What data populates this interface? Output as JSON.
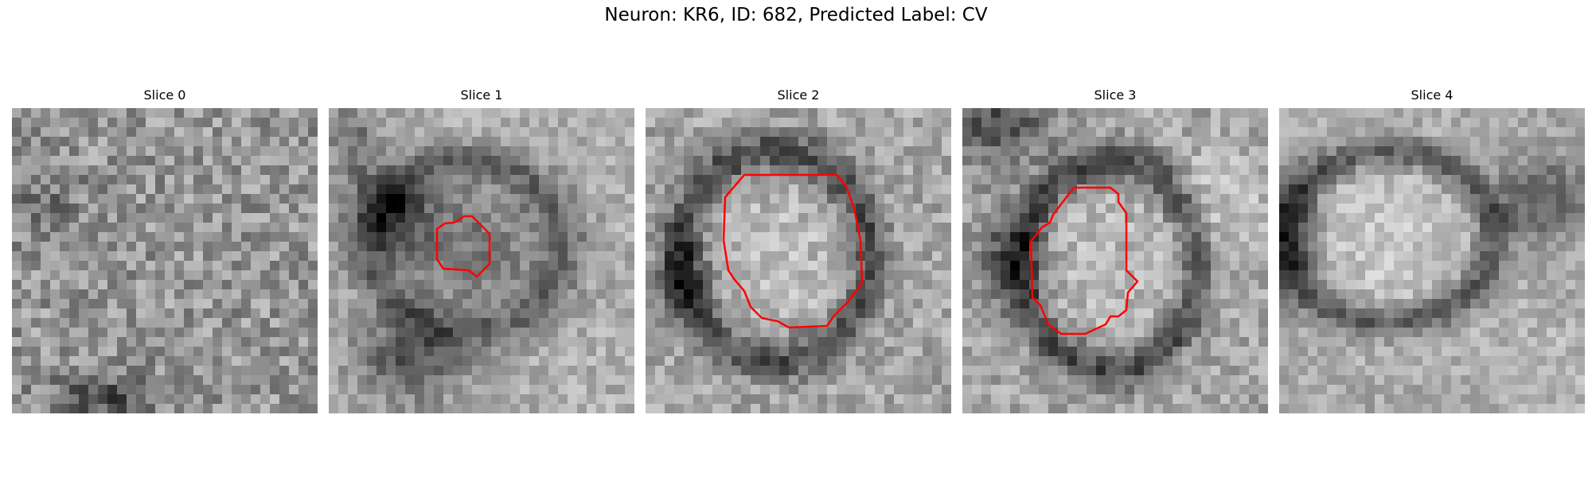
{
  "figure": {
    "title": "Neuron: KR6, ID: 682, Predicted Label: CV"
  },
  "panels": [
    {
      "title": "Slice 0",
      "has_contour": false
    },
    {
      "title": "Slice 1",
      "has_contour": true
    },
    {
      "title": "Slice 2",
      "has_contour": true
    },
    {
      "title": "Slice 3",
      "has_contour": true
    },
    {
      "title": "Slice 4",
      "has_contour": false
    }
  ],
  "colors": {
    "contour": "#ff0000",
    "background": "#ffffff",
    "colormap": "gray"
  }
}
